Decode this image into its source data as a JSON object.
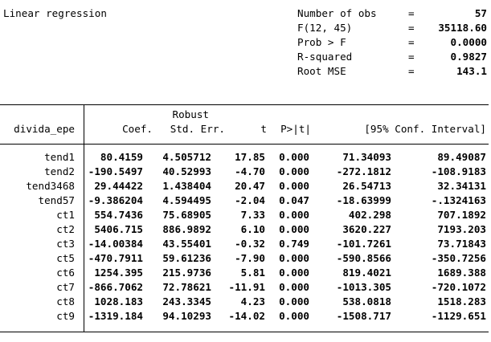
{
  "title": "Linear regression",
  "colors": {
    "text": "#000000",
    "background": "#ffffff"
  },
  "stats": [
    {
      "label": "Number of obs",
      "eq": "=",
      "value": "57"
    },
    {
      "label": "F(12, 45)",
      "eq": "=",
      "value": "35118.60"
    },
    {
      "label": "Prob > F",
      "eq": "=",
      "value": "0.0000"
    },
    {
      "label": "R-squared",
      "eq": "=",
      "value": "0.9827"
    },
    {
      "label": "Root MSE",
      "eq": "=",
      "value": "143.1"
    }
  ],
  "table": {
    "depvar": "divida_epe",
    "robust_label": "Robust",
    "headers": {
      "coef": "Coef.",
      "se": "Std. Err.",
      "t": "t",
      "p": "P>|t|",
      "ci": "[95% Conf. Interval]"
    },
    "rows": [
      {
        "var": "tend1",
        "coef": "80.4159",
        "se": "4.505712",
        "t": "17.85",
        "p": "0.000",
        "lo": "71.34093",
        "hi": "89.49087"
      },
      {
        "var": "tend2",
        "coef": "-190.5497",
        "se": "40.52993",
        "t": "-4.70",
        "p": "0.000",
        "lo": "-272.1812",
        "hi": "-108.9183"
      },
      {
        "var": "tend3468",
        "coef": "29.44422",
        "se": "1.438404",
        "t": "20.47",
        "p": "0.000",
        "lo": "26.54713",
        "hi": "32.34131"
      },
      {
        "var": "tend57",
        "coef": "-9.386204",
        "se": "4.594495",
        "t": "-2.04",
        "p": "0.047",
        "lo": "-18.63999",
        "hi": "-.1324163"
      },
      {
        "var": "ct1",
        "coef": "554.7436",
        "se": "75.68905",
        "t": "7.33",
        "p": "0.000",
        "lo": "402.298",
        "hi": "707.1892"
      },
      {
        "var": "ct2",
        "coef": "5406.715",
        "se": "886.9892",
        "t": "6.10",
        "p": "0.000",
        "lo": "3620.227",
        "hi": "7193.203"
      },
      {
        "var": "ct3",
        "coef": "-14.00384",
        "se": "43.55401",
        "t": "-0.32",
        "p": "0.749",
        "lo": "-101.7261",
        "hi": "73.71843"
      },
      {
        "var": "ct5",
        "coef": "-470.7911",
        "se": "59.61236",
        "t": "-7.90",
        "p": "0.000",
        "lo": "-590.8566",
        "hi": "-350.7256"
      },
      {
        "var": "ct6",
        "coef": "1254.395",
        "se": "215.9736",
        "t": "5.81",
        "p": "0.000",
        "lo": "819.4021",
        "hi": "1689.388"
      },
      {
        "var": "ct7",
        "coef": "-866.7062",
        "se": "72.78621",
        "t": "-11.91",
        "p": "0.000",
        "lo": "-1013.305",
        "hi": "-720.1072"
      },
      {
        "var": "ct8",
        "coef": "1028.183",
        "se": "243.3345",
        "t": "4.23",
        "p": "0.000",
        "lo": "538.0818",
        "hi": "1518.283"
      },
      {
        "var": "ct9",
        "coef": "-1319.184",
        "se": "94.10293",
        "t": "-14.02",
        "p": "0.000",
        "lo": "-1508.717",
        "hi": "-1129.651"
      }
    ]
  }
}
